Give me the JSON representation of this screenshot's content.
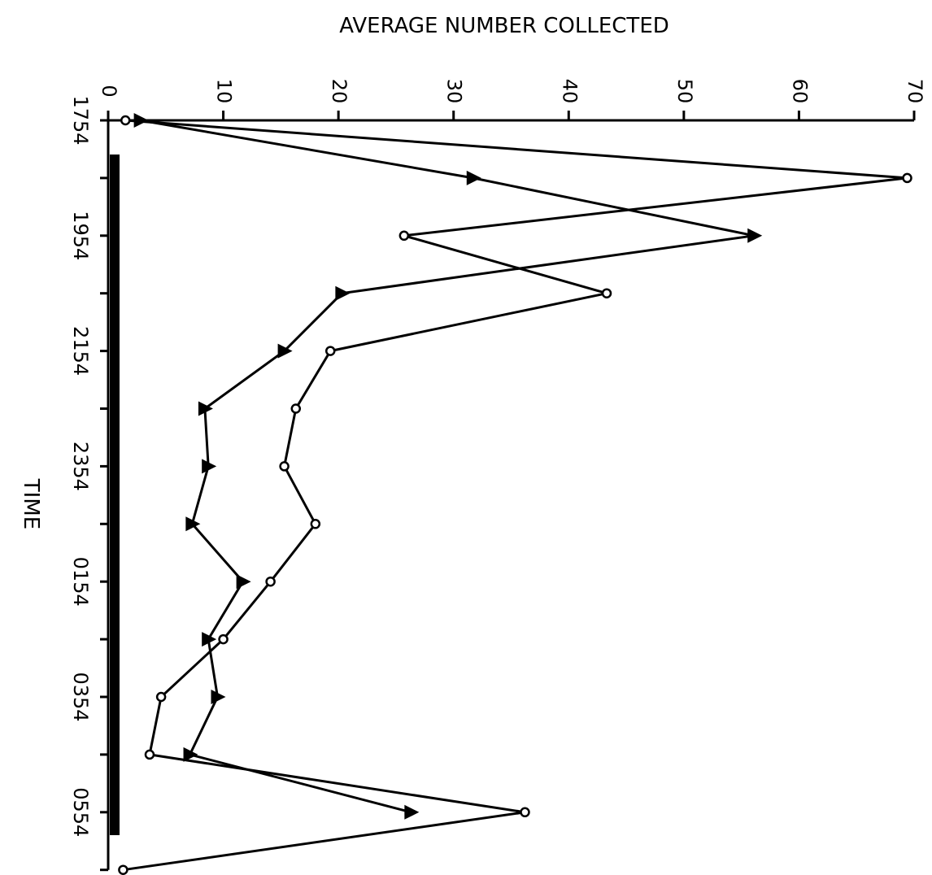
{
  "chart_data": {
    "type": "line",
    "orientation": "horizontal",
    "title": "AVERAGE NUMBER COLLECTED",
    "xlabel": "TIME",
    "categories": [
      "1754",
      null,
      "1954",
      null,
      "2154",
      null,
      "2354",
      null,
      "0154",
      null,
      "0354",
      null,
      "0554",
      null
    ],
    "ylim": [
      0,
      70
    ],
    "yticks": [
      0,
      10,
      20,
      30,
      40,
      50,
      60,
      70
    ],
    "series": [
      {
        "color": "#000000",
        "marker": "circle",
        "values": [
          1.5,
          69.4,
          25.7,
          43.3,
          19.3,
          16.3,
          15.3,
          18.0,
          14.1,
          10.0,
          4.6,
          3.6,
          36.2,
          1.3
        ]
      },
      {
        "color": "#000000",
        "marker": "triangle",
        "values": [
          2.8,
          31.7,
          56.1,
          20.3,
          15.3,
          8.4,
          8.7,
          7.3,
          11.7,
          8.7,
          9.5,
          7.1,
          26.3,
          null
        ]
      }
    ]
  }
}
